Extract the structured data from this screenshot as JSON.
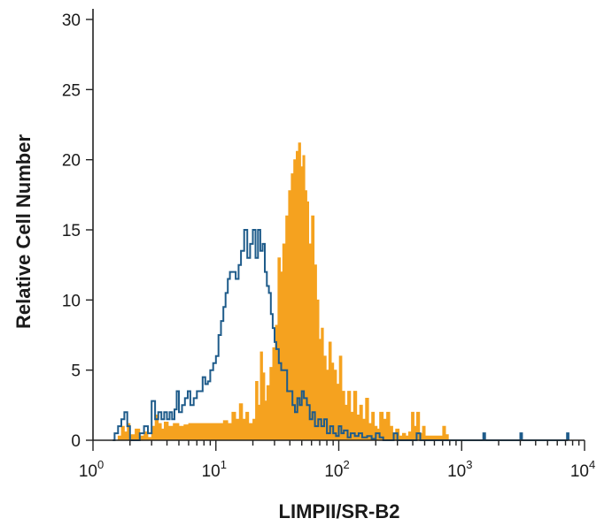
{
  "chart_data": {
    "type": "histogram",
    "title": "",
    "xlabel": "LIMPII/SR-B2",
    "ylabel": "Relative Cell Number",
    "xscale": "log",
    "xlim": [
      1,
      10000
    ],
    "ylim": [
      0,
      30
    ],
    "y_ticks": [
      "0",
      "5",
      "10",
      "15",
      "20",
      "25",
      "30"
    ],
    "x_ticks": [
      {
        "base": "10",
        "exp": "0"
      },
      {
        "base": "10",
        "exp": "1"
      },
      {
        "base": "10",
        "exp": "2"
      },
      {
        "base": "10",
        "exp": "3"
      },
      {
        "base": "10",
        "exp": "4"
      }
    ],
    "grid": false,
    "legend": "none",
    "series": [
      {
        "style": "filled",
        "color": "#f5a21f",
        "points": [
          [
            1.6,
            0.3
          ],
          [
            1.7,
            1.0
          ],
          [
            1.8,
            0.6
          ],
          [
            1.9,
            1.2
          ],
          [
            2.0,
            0.4
          ],
          [
            2.2,
            0.8
          ],
          [
            2.4,
            0.3
          ],
          [
            2.6,
            0.6
          ],
          [
            2.8,
            0.2
          ],
          [
            3.0,
            1.0
          ],
          [
            3.2,
            1.8
          ],
          [
            3.4,
            1.2
          ],
          [
            3.6,
            0.8
          ],
          [
            3.8,
            1.3
          ],
          [
            4.1,
            1.0
          ],
          [
            4.5,
            1.2
          ],
          [
            5.0,
            1.0
          ],
          [
            5.5,
            1.1
          ],
          [
            6.0,
            1.2
          ],
          [
            6.6,
            1.2
          ],
          [
            7.2,
            1.2
          ],
          [
            8.0,
            1.2
          ],
          [
            8.8,
            1.2
          ],
          [
            9.6,
            1.2
          ],
          [
            10.5,
            1.2
          ],
          [
            11.5,
            1.4
          ],
          [
            12.5,
            1.2
          ],
          [
            13.5,
            2.0
          ],
          [
            14.5,
            1.5
          ],
          [
            15.5,
            2.6
          ],
          [
            16.5,
            1.5
          ],
          [
            17.5,
            2.0
          ],
          [
            18.5,
            1.2
          ],
          [
            20.0,
            1.5
          ],
          [
            21.0,
            4.2
          ],
          [
            22.0,
            2.5
          ],
          [
            23.0,
            6.3
          ],
          [
            24.0,
            4.8
          ],
          [
            25.0,
            2.8
          ],
          [
            26.0,
            3.9
          ],
          [
            27.5,
            5.2
          ],
          [
            29.0,
            6.6
          ],
          [
            30.5,
            8.2
          ],
          [
            32.0,
            13.0
          ],
          [
            33.5,
            12.0
          ],
          [
            35.0,
            14.0
          ],
          [
            37.0,
            16.0
          ],
          [
            39.0,
            17.8
          ],
          [
            41.0,
            19.0
          ],
          [
            43.0,
            20.0
          ],
          [
            45.0,
            20.6
          ],
          [
            47.0,
            21.2
          ],
          [
            49.0,
            19.5
          ],
          [
            51.0,
            20.3
          ],
          [
            53.0,
            17.8
          ],
          [
            55.0,
            17.0
          ],
          [
            57.0,
            14.0
          ],
          [
            60.0,
            16.0
          ],
          [
            63.0,
            12.5
          ],
          [
            66.0,
            10.0
          ],
          [
            69.0,
            7.2
          ],
          [
            72.0,
            8.0
          ],
          [
            75.0,
            6.0
          ],
          [
            79.0,
            5.0
          ],
          [
            83.0,
            7.0
          ],
          [
            87.0,
            5.5
          ],
          [
            91.0,
            5.0
          ],
          [
            96.0,
            4.0
          ],
          [
            101.0,
            6.0
          ],
          [
            106.0,
            3.5
          ],
          [
            112.0,
            2.5
          ],
          [
            118.0,
            3.5
          ],
          [
            125.0,
            2.0
          ],
          [
            132.0,
            3.5
          ],
          [
            140.0,
            1.8
          ],
          [
            148.0,
            2.5
          ],
          [
            156.0,
            1.5
          ],
          [
            165.0,
            3.0
          ],
          [
            175.0,
            1.2
          ],
          [
            185.0,
            2.0
          ],
          [
            195.0,
            1.0
          ],
          [
            205.0,
            0.8
          ],
          [
            215.0,
            2.0
          ],
          [
            230.0,
            1.5
          ],
          [
            245.0,
            2.0
          ],
          [
            260.0,
            1.0
          ],
          [
            275.0,
            0.5
          ],
          [
            290.0,
            0.8
          ],
          [
            310.0,
            0.3
          ],
          [
            330.0,
            0.5
          ],
          [
            350.0,
            0.3
          ],
          [
            370.0,
            0.6
          ],
          [
            390.0,
            2.0
          ],
          [
            410.0,
            1.0
          ],
          [
            430.0,
            2.0
          ],
          [
            455.0,
            0.5
          ],
          [
            480.0,
            1.0
          ],
          [
            505.0,
            0.3
          ],
          [
            700.0,
            1.0
          ],
          [
            740.0,
            0.4
          ],
          [
            780.0,
            0
          ]
        ]
      },
      {
        "style": "outline",
        "color": "#1e5b8a",
        "points": [
          [
            1.45,
            0
          ],
          [
            1.5,
            0.5
          ],
          [
            1.6,
            1.0
          ],
          [
            1.7,
            1.5
          ],
          [
            1.8,
            2.0
          ],
          [
            1.9,
            1.0
          ],
          [
            2.0,
            0
          ],
          [
            2.2,
            0
          ],
          [
            2.4,
            0.5
          ],
          [
            2.6,
            1.0
          ],
          [
            2.8,
            0.5
          ],
          [
            3.0,
            2.8
          ],
          [
            3.2,
            1.5
          ],
          [
            3.4,
            2.0
          ],
          [
            3.6,
            1.5
          ],
          [
            3.8,
            2.0
          ],
          [
            4.0,
            1.5
          ],
          [
            4.2,
            2.0
          ],
          [
            4.4,
            1.5
          ],
          [
            4.6,
            2.2
          ],
          [
            4.8,
            3.5
          ],
          [
            5.0,
            2.0
          ],
          [
            5.3,
            2.5
          ],
          [
            5.6,
            3.0
          ],
          [
            5.9,
            3.5
          ],
          [
            6.2,
            2.5
          ],
          [
            6.6,
            3.0
          ],
          [
            7.0,
            3.5
          ],
          [
            7.4,
            3.5
          ],
          [
            7.8,
            4.5
          ],
          [
            8.2,
            4.0
          ],
          [
            8.6,
            4.2
          ],
          [
            9.0,
            5.0
          ],
          [
            9.5,
            5.5
          ],
          [
            10.0,
            6.0
          ],
          [
            10.5,
            7.5
          ],
          [
            11.0,
            8.5
          ],
          [
            11.5,
            9.5
          ],
          [
            12.0,
            10.5
          ],
          [
            12.5,
            11.5
          ],
          [
            13.0,
            12.0
          ],
          [
            13.8,
            12.0
          ],
          [
            14.5,
            11.5
          ],
          [
            15.3,
            12.5
          ],
          [
            16.0,
            13.5
          ],
          [
            17.0,
            15.0
          ],
          [
            18.0,
            13.0
          ],
          [
            19.0,
            14.0
          ],
          [
            20.0,
            15.0
          ],
          [
            21.0,
            13.0
          ],
          [
            22.0,
            15.0
          ],
          [
            23.0,
            13.5
          ],
          [
            24.0,
            14.0
          ],
          [
            25.0,
            12.0
          ],
          [
            26.0,
            11.0
          ],
          [
            27.0,
            10.5
          ],
          [
            28.0,
            9.0
          ],
          [
            29.0,
            8.0
          ],
          [
            30.0,
            7.0
          ],
          [
            31.0,
            6.5
          ],
          [
            32.5,
            5.5
          ],
          [
            34.0,
            5.0
          ],
          [
            36.0,
            5.0
          ],
          [
            38.0,
            3.5
          ],
          [
            40.0,
            3.5
          ],
          [
            42.0,
            2.5
          ],
          [
            44.0,
            2.0
          ],
          [
            46.0,
            3.0
          ],
          [
            48.0,
            2.5
          ],
          [
            50.0,
            3.5
          ],
          [
            52.0,
            3.0
          ],
          [
            55.0,
            2.5
          ],
          [
            58.0,
            1.5
          ],
          [
            61.0,
            2.0
          ],
          [
            64.0,
            1.0
          ],
          [
            68.0,
            1.5
          ],
          [
            72.0,
            1.0
          ],
          [
            76.0,
            1.5
          ],
          [
            80.0,
            0.5
          ],
          [
            85.0,
            1.0
          ],
          [
            90.0,
            0.5
          ],
          [
            95.0,
            0.3
          ],
          [
            100.0,
            1.0
          ],
          [
            105.0,
            0.5
          ],
          [
            110.0,
            0.7
          ],
          [
            118.0,
            0.2
          ],
          [
            125.0,
            0.5
          ],
          [
            135.0,
            0.3
          ],
          [
            145.0,
            0.5
          ],
          [
            155.0,
            0.2
          ],
          [
            170.0,
            0.3
          ],
          [
            185.0,
            0.1
          ],
          [
            200.0,
            0.5
          ],
          [
            215.0,
            0.2
          ],
          [
            230.0,
            0
          ],
          [
            260.0,
            0
          ],
          [
            280.0,
            0.5
          ],
          [
            300.0,
            0
          ],
          [
            400.0,
            0
          ],
          [
            430.0,
            0.5
          ],
          [
            460.0,
            0
          ],
          [
            1450.0,
            0
          ],
          [
            1500.0,
            0.5
          ],
          [
            1550.0,
            0
          ],
          [
            2900.0,
            0
          ],
          [
            3000.0,
            0.5
          ],
          [
            3100.0,
            0
          ],
          [
            7000.0,
            0
          ],
          [
            7200.0,
            0.5
          ],
          [
            7400.0,
            0
          ]
        ]
      }
    ]
  }
}
